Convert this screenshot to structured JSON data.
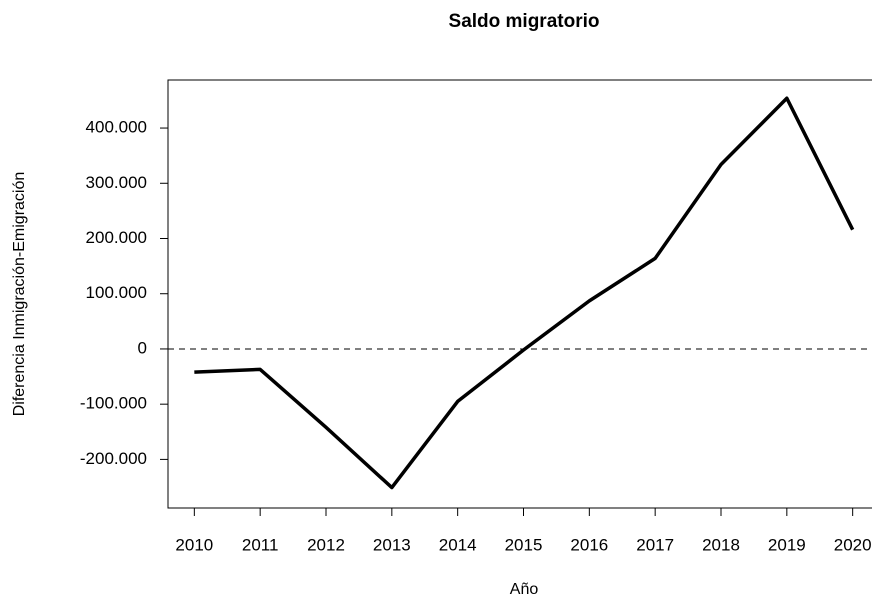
{
  "chart_data": {
    "type": "line",
    "title": "Saldo migratorio",
    "x_label": "Año",
    "y_label": "Diferencia Inmigración-Emigración",
    "x": [
      2010,
      2011,
      2012,
      2013,
      2014,
      2015,
      2016,
      2017,
      2018,
      2019,
      2020
    ],
    "series": [
      {
        "color": "#000000",
        "values": [
          -42000,
          -37000,
          -142000,
          -251000,
          -95000,
          -2000,
          87000,
          164000,
          334000,
          454000,
          216000
        ]
      }
    ],
    "xlim": [
      2009.6,
      2020.4
    ],
    "ylim": [
      -288000,
      487000
    ],
    "xticks": [
      2010,
      2011,
      2012,
      2013,
      2014,
      2015,
      2016,
      2017,
      2018,
      2019,
      2020
    ],
    "yticks": [
      {
        "value": -200000,
        "label": "-200.000"
      },
      {
        "value": -100000,
        "label": "-100.000"
      },
      0,
      {
        "value": 100000,
        "label": "100.000"
      },
      {
        "value": 200000,
        "label": "200.000"
      },
      {
        "value": 300000,
        "label": "300.000"
      },
      {
        "value": 400000,
        "label": "400.000"
      }
    ],
    "reference_line": 0,
    "grid": false
  }
}
